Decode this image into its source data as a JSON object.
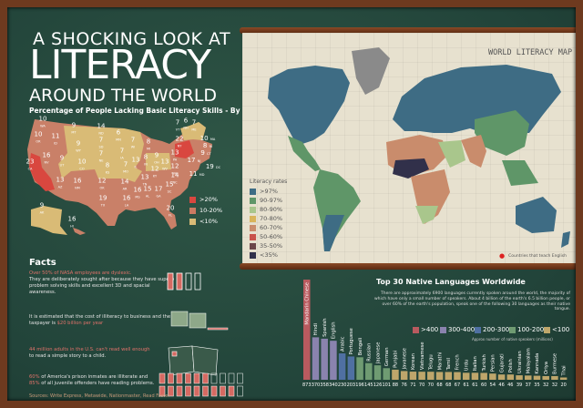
{
  "title": {
    "line1": "A SHOCKING LOOK AT",
    "line2": "LITERACY",
    "line3": "AROUND THE WORLD",
    "subtitle": "Percentage of People Lacking Basic Literacy Skills - By State"
  },
  "us_map": {
    "states": [
      {
        "abbr": "WA",
        "value": 10
      },
      {
        "abbr": "OR",
        "value": 10
      },
      {
        "abbr": "ID",
        "value": 11
      },
      {
        "abbr": "MT",
        "value": 9
      },
      {
        "abbr": "ND",
        "value": 14
      },
      {
        "abbr": "MN",
        "value": 6
      },
      {
        "abbr": "WI",
        "value": 7
      },
      {
        "abbr": "MI",
        "value": 8
      },
      {
        "abbr": "NY",
        "value": 22
      },
      {
        "abbr": "VT",
        "value": 7
      },
      {
        "abbr": "NH",
        "value": 6
      },
      {
        "abbr": "ME",
        "value": 7
      },
      {
        "abbr": "MA",
        "value": 10
      },
      {
        "abbr": "RI",
        "value": 8
      },
      {
        "abbr": "CT",
        "value": 9
      },
      {
        "abbr": "NJ",
        "value": 17
      },
      {
        "abbr": "DC",
        "value": 19
      },
      {
        "abbr": "MD",
        "value": 11
      },
      {
        "abbr": "WY",
        "value": 9
      },
      {
        "abbr": "SD",
        "value": 7
      },
      {
        "abbr": "NE",
        "value": 7
      },
      {
        "abbr": "IA",
        "value": 7
      },
      {
        "abbr": "IL",
        "value": 13
      },
      {
        "abbr": "IN",
        "value": 8
      },
      {
        "abbr": "OH",
        "value": 9
      },
      {
        "abbr": "PA",
        "value": 13
      },
      {
        "abbr": "NV",
        "value": 16
      },
      {
        "abbr": "UT",
        "value": 9
      },
      {
        "abbr": "CO",
        "value": 10
      },
      {
        "abbr": "KS",
        "value": 8
      },
      {
        "abbr": "MO",
        "value": 7
      },
      {
        "abbr": "KY",
        "value": 12
      },
      {
        "abbr": "WV",
        "value": 13
      },
      {
        "abbr": "VA",
        "value": 12
      },
      {
        "abbr": "CA",
        "value": 23
      },
      {
        "abbr": "AZ",
        "value": 13
      },
      {
        "abbr": "NM",
        "value": 16
      },
      {
        "abbr": "OK",
        "value": 12
      },
      {
        "abbr": "AR",
        "value": 14
      },
      {
        "abbr": "TN",
        "value": 13
      },
      {
        "abbr": "NC",
        "value": 14
      },
      {
        "abbr": "SC",
        "value": 15
      },
      {
        "abbr": "TX",
        "value": 19
      },
      {
        "abbr": "LA",
        "value": 16
      },
      {
        "abbr": "MS",
        "value": 16
      },
      {
        "abbr": "AL",
        "value": 15
      },
      {
        "abbr": "GA",
        "value": 17
      },
      {
        "abbr": "FL",
        "value": 20
      },
      {
        "abbr": "AK",
        "value": 9
      },
      {
        "abbr": "HI",
        "value": 16
      }
    ],
    "legend": [
      {
        "label": ">20%",
        "color": "#d9473f"
      },
      {
        "label": "10-20%",
        "color": "#cc7a62"
      },
      {
        "label": "<10%",
        "color": "#d9bb76"
      }
    ]
  },
  "facts": {
    "heading": "Facts",
    "items": [
      {
        "highlight": "Over 50% of NASA employees are dyslexic.",
        "text": "They are deliberately sought after because they have superb problem solving skills and excellent 3D and spacial awareness."
      },
      {
        "text": "It is estimated that the cost of illiteracy to business and the taxpayer is",
        "highlight": "$20 billion per year"
      },
      {
        "highlight": "44 million adults in the U.S. can't read well enough",
        "text": "to read a simple story to a child."
      },
      {
        "h1": "60%",
        "t1": "of America's prison inmates are illiterate and",
        "h2": "85%",
        "t2": "of all juvenile offenders have reading problems."
      }
    ],
    "sources": "Sources: Write Express, Metawide, Nationmaster, Read Faster"
  },
  "world_map": {
    "title": "WORLD LITERACY MAP",
    "legend_title": "Literacy rates",
    "legend": [
      {
        "label": ">97%",
        "color": "#3e6c84"
      },
      {
        "label": "90-97%",
        "color": "#5f9668"
      },
      {
        "label": "80-90%",
        "color": "#a9c68c"
      },
      {
        "label": "70-80%",
        "color": "#d9b45a"
      },
      {
        "label": "60-70%",
        "color": "#c98c6c"
      },
      {
        "label": "50-60%",
        "color": "#c9524a"
      },
      {
        "label": "35-50%",
        "color": "#6c4649"
      },
      {
        "label": "<35%",
        "color": "#31304a"
      }
    ],
    "pin_label": "Countries that teach English"
  },
  "languages": {
    "title": "Top 30 Native Languages Worldwide",
    "description": "There are approximately 6900 languages currently spoken around the world, the majority of which have only a small number of speakers. About 4 billion of the earth's 6.5 billion people, or over 60% of the earth's population, speak one of the following 30 languages as their native tongue.",
    "legend": [
      {
        "label": ">400",
        "color": "#b95a5f"
      },
      {
        "label": "300-400",
        "color": "#8a83ae"
      },
      {
        "label": "200-300",
        "color": "#4f70a2"
      },
      {
        "label": "100-200",
        "color": "#6f9b72"
      },
      {
        "label": "<100",
        "color": "#bea66b"
      }
    ],
    "note": "Approx number of native speakers (millions)"
  },
  "chart_data": {
    "type": "bar",
    "title": "Top 30 Native Languages Worldwide",
    "ylabel": "Approx number of native speakers (millions)",
    "categories": [
      "Mandarin Chinese",
      "Hindi",
      "Spanish",
      "English",
      "Arabic",
      "Portuguese",
      "Bengali",
      "Russian",
      "Japanese",
      "German",
      "Punjabi",
      "Javanese",
      "Korean",
      "Vietnamese",
      "Telugu",
      "Marathi",
      "Tamil",
      "French",
      "Urdu",
      "Italian",
      "Turkish",
      "Persian",
      "Gujarati",
      "Polish",
      "Ukrainian",
      "Malayalam",
      "Kannada",
      "Oriya",
      "Burmese",
      "Thai"
    ],
    "values": [
      873,
      370,
      358,
      340,
      230,
      203,
      196,
      145,
      126,
      101,
      88,
      76,
      71,
      70,
      70,
      68,
      68,
      67,
      61,
      61,
      60,
      54,
      46,
      46,
      39,
      37,
      35,
      32,
      32,
      20
    ]
  }
}
